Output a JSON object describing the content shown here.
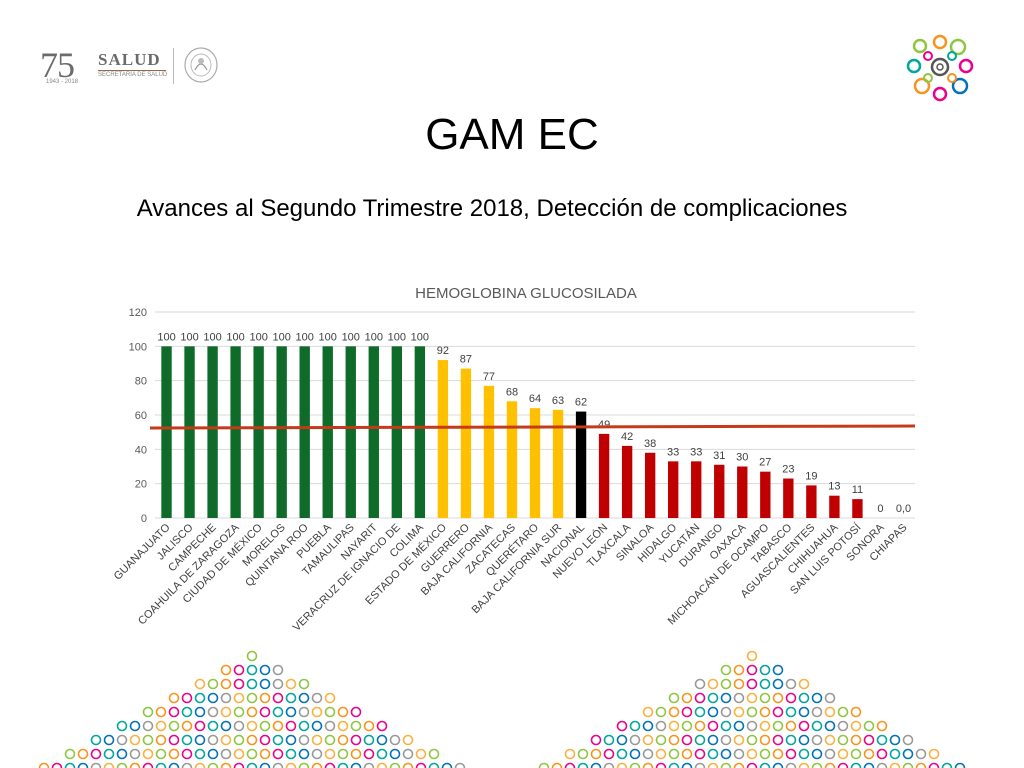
{
  "header": {
    "logo_number": "75",
    "logo_years": "1943 - 2018",
    "logo_brand": "SALUD",
    "logo_sub": "SECRETARÍA DE SALUD"
  },
  "slide": {
    "title": "GAM EC",
    "subtitle": "Avances al Segundo Trimestre 2018, Detección de complicaciones"
  },
  "colors": {
    "green": "#0e6b2a",
    "yellow": "#ffc000",
    "black": "#000000",
    "red": "#c00000",
    "reference_line": "#c43a1b"
  },
  "chart_data": {
    "type": "bar",
    "title": "HEMOGLOBINA GLUCOSILADA",
    "xlabel": "",
    "ylabel": "",
    "ylim": [
      0,
      120
    ],
    "yticks": [
      0,
      20,
      40,
      60,
      80,
      100,
      120
    ],
    "grid": true,
    "reference_line": 53,
    "categories": [
      "GUANAJUATO",
      "JALISCO",
      "CAMPECHE",
      "COAHUILA DE ZARAGOZA",
      "CIUDAD DE MÉXICO",
      "MORELOS",
      "QUINTANA ROO",
      "PUEBLA",
      "TAMAULIPAS",
      "NAYARIT",
      "VERACRUZ DE IGNACIO DE",
      "COLIMA",
      "ESTADO DE MÉXICO",
      "GUERRERO",
      "BAJA CALIFORNIA",
      "ZACATECAS",
      "QUERÉTARO",
      "BAJA CALIFORNIA SUR",
      "NACIONAL",
      "NUEVO LEÓN",
      "TLAXCALA",
      "SINALOA",
      "HIDALGO",
      "YUCATÁN",
      "DURANGO",
      "OAXACA",
      "MICHOACÁN DE OCAMPO",
      "TABASCO",
      "AGUASCALIENTES",
      "CHIHUAHUA",
      "SAN LUIS POTOSÍ",
      "SONORA",
      "CHIAPAS"
    ],
    "values": [
      100,
      100,
      100,
      100,
      100,
      100,
      100,
      100,
      100,
      100,
      100,
      100,
      92,
      87,
      77,
      68,
      64,
      63,
      62,
      49,
      42,
      38,
      33,
      33,
      31,
      30,
      27,
      23,
      19,
      13,
      11,
      0,
      0
    ],
    "labels": [
      "100",
      "100",
      "100",
      "100",
      "100",
      "100",
      "100",
      "100",
      "100",
      "100",
      "100",
      "100",
      "92",
      "87",
      "77",
      "68",
      "64",
      "63",
      "62",
      "49",
      "42",
      "38",
      "33",
      "33",
      "31",
      "30",
      "27",
      "23",
      "19",
      "13",
      "11",
      "0",
      "0,0"
    ],
    "bar_colors": [
      "green",
      "green",
      "green",
      "green",
      "green",
      "green",
      "green",
      "green",
      "green",
      "green",
      "green",
      "green",
      "yellow",
      "yellow",
      "yellow",
      "yellow",
      "yellow",
      "yellow",
      "black",
      "red",
      "red",
      "red",
      "red",
      "red",
      "red",
      "red",
      "red",
      "red",
      "red",
      "red",
      "red",
      "red",
      "red"
    ]
  }
}
